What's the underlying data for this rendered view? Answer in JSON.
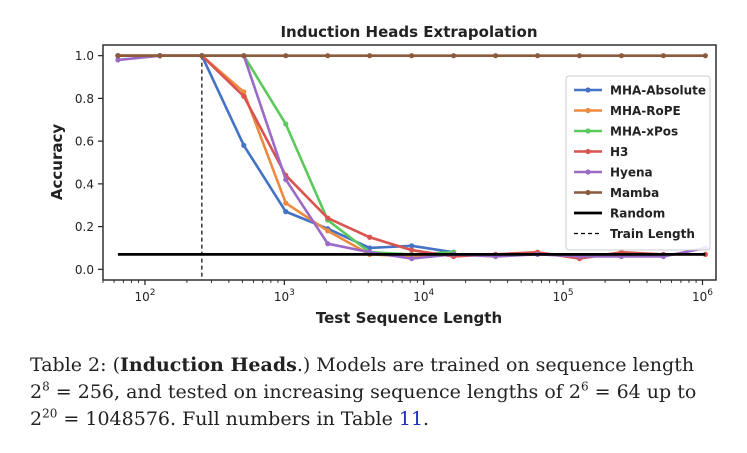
{
  "chart_data": {
    "type": "line",
    "title": "Induction Heads Extrapolation",
    "xlabel": "Test Sequence Length",
    "ylabel": "Accuracy",
    "x_scale": "log",
    "xlim": [
      50,
      1250000
    ],
    "ylim": [
      -0.05,
      1.05
    ],
    "x_ticks": [
      100,
      1000,
      10000,
      100000,
      1000000
    ],
    "x_tick_labels": [
      {
        "base": "10",
        "exp": "2"
      },
      {
        "base": "10",
        "exp": "3"
      },
      {
        "base": "10",
        "exp": "4"
      },
      {
        "base": "10",
        "exp": "5"
      },
      {
        "base": "10",
        "exp": "6"
      }
    ],
    "y_ticks": [
      0.0,
      0.2,
      0.4,
      0.6,
      0.8,
      1.0
    ],
    "y_tick_labels": [
      "0.0",
      "0.2",
      "0.4",
      "0.6",
      "0.8",
      "1.0"
    ],
    "grid": false,
    "legend_placement": "right",
    "x": [
      64,
      128,
      256,
      512,
      1024,
      2048,
      4096,
      8192,
      16384,
      32768,
      65536,
      131072,
      262144,
      524288,
      1048576
    ],
    "series": [
      {
        "name": "MHA-Absolute",
        "color": "#4472c4",
        "values": [
          1.0,
          1.0,
          1.0,
          0.58,
          0.27,
          0.19,
          0.1,
          0.11,
          0.08,
          null,
          null,
          null,
          null,
          null,
          null
        ]
      },
      {
        "name": "MHA-RoPE",
        "color": "#ed8a3f",
        "values": [
          1.0,
          1.0,
          1.0,
          0.83,
          0.31,
          0.18,
          0.07,
          0.06,
          0.07,
          null,
          null,
          null,
          null,
          null,
          null
        ]
      },
      {
        "name": "MHA-xPos",
        "color": "#5cc95c",
        "values": [
          1.0,
          1.0,
          1.0,
          1.0,
          0.68,
          0.23,
          0.08,
          0.07,
          0.08,
          null,
          null,
          null,
          null,
          null,
          null
        ]
      },
      {
        "name": "H3",
        "color": "#d9534f",
        "values": [
          1.0,
          1.0,
          1.0,
          0.81,
          0.44,
          0.24,
          0.15,
          0.09,
          0.06,
          0.07,
          0.08,
          0.05,
          0.08,
          0.07,
          0.07
        ]
      },
      {
        "name": "Hyena",
        "color": "#9b6ac6",
        "values": [
          0.98,
          1.0,
          1.0,
          1.0,
          0.42,
          0.12,
          0.08,
          0.05,
          0.07,
          0.06,
          0.07,
          0.06,
          0.06,
          0.06,
          0.1
        ]
      },
      {
        "name": "Mamba",
        "color": "#8c5a3c",
        "values": [
          1.0,
          1.0,
          1.0,
          1.0,
          1.0,
          1.0,
          1.0,
          1.0,
          1.0,
          1.0,
          1.0,
          1.0,
          1.0,
          1.0,
          1.0
        ]
      }
    ],
    "random": {
      "name": "Random",
      "color": "#000000",
      "y": 0.07,
      "x_range": [
        64,
        1048576
      ]
    },
    "train_length": {
      "name": "Train Length",
      "x": 256
    }
  },
  "caption": {
    "prefix": "Table 2: (",
    "bold": "Induction Heads",
    "after_bold": ".) Models are trained on sequence length",
    "line2_a": "2",
    "line2_a_sup": "8",
    "line2_b": " = 256, and tested on increasing sequence lengths of 2",
    "line2_b_sup": "6",
    "line2_c": " = 64 up to",
    "line3_a": "2",
    "line3_a_sup": "20",
    "line3_b": " = 1048576. Full numbers in Table ",
    "ref": "11",
    "line3_end": "."
  }
}
